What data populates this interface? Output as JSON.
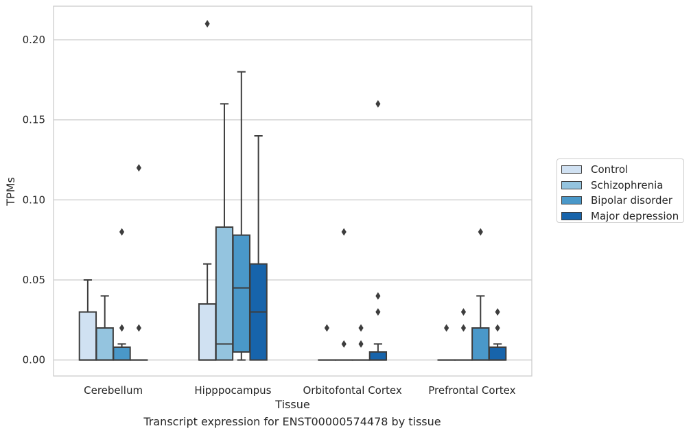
{
  "caption": "Transcript expression for ENST00000574478 by tissue",
  "colors": {
    "Control": "#d0e1f2",
    "Schizophrenia": "#94c4df",
    "Bipolar disorder": "#4a98c9",
    "Major depression": "#1764ab",
    "grid": "#cccccc",
    "edge": "#3d3d3d"
  },
  "chart_data": {
    "type": "box",
    "xlabel": "Tissue",
    "ylabel": "TPMs",
    "ylim": [
      -0.01,
      0.221
    ],
    "yticks": [
      0.0,
      0.05,
      0.1,
      0.15,
      0.2
    ],
    "ytick_labels": [
      "0.00",
      "0.05",
      "0.10",
      "0.15",
      "0.20"
    ],
    "grid": true,
    "legend_position": "right",
    "categories": [
      "Cerebellum",
      "Hipppocampus",
      "Orbitofontal Cortex",
      "Prefrontal Cortex"
    ],
    "series": [
      {
        "name": "Control",
        "boxes": [
          {
            "whislo": 0.0,
            "q1": 0.0,
            "med": 0.0,
            "q3": 0.03,
            "whishi": 0.05,
            "fliers": []
          },
          {
            "whislo": 0.0,
            "q1": 0.0,
            "med": 0.0,
            "q3": 0.035,
            "whishi": 0.06,
            "fliers": [
              0.21
            ]
          },
          {
            "whislo": 0.0,
            "q1": 0.0,
            "med": 0.0,
            "q3": 0.0,
            "whishi": 0.0,
            "fliers": [
              0.02
            ]
          },
          {
            "whislo": 0.0,
            "q1": 0.0,
            "med": 0.0,
            "q3": 0.0,
            "whishi": 0.0,
            "fliers": [
              0.02
            ]
          }
        ]
      },
      {
        "name": "Schizophrenia",
        "boxes": [
          {
            "whislo": 0.0,
            "q1": 0.0,
            "med": 0.0,
            "q3": 0.02,
            "whishi": 0.04,
            "fliers": []
          },
          {
            "whislo": 0.0,
            "q1": 0.0,
            "med": 0.01,
            "q3": 0.083,
            "whishi": 0.16,
            "fliers": []
          },
          {
            "whislo": 0.0,
            "q1": 0.0,
            "med": 0.0,
            "q3": 0.0,
            "whishi": 0.0,
            "fliers": [
              0.01,
              0.08
            ]
          },
          {
            "whislo": 0.0,
            "q1": 0.0,
            "med": 0.0,
            "q3": 0.0,
            "whishi": 0.0,
            "fliers": [
              0.02,
              0.03
            ]
          }
        ]
      },
      {
        "name": "Bipolar disorder",
        "boxes": [
          {
            "whislo": 0.0,
            "q1": 0.0,
            "med": 0.0,
            "q3": 0.008,
            "whishi": 0.01,
            "fliers": [
              0.02,
              0.08
            ]
          },
          {
            "whislo": 0.0,
            "q1": 0.005,
            "med": 0.045,
            "q3": 0.078,
            "whishi": 0.18,
            "fliers": []
          },
          {
            "whislo": 0.0,
            "q1": 0.0,
            "med": 0.0,
            "q3": 0.0,
            "whishi": 0.0,
            "fliers": [
              0.01,
              0.02
            ]
          },
          {
            "whislo": 0.0,
            "q1": 0.0,
            "med": 0.0,
            "q3": 0.02,
            "whishi": 0.04,
            "fliers": [
              0.08
            ]
          }
        ]
      },
      {
        "name": "Major depression",
        "boxes": [
          {
            "whislo": 0.0,
            "q1": 0.0,
            "med": 0.0,
            "q3": 0.0,
            "whishi": 0.0,
            "fliers": [
              0.02,
              0.12
            ]
          },
          {
            "whislo": 0.0,
            "q1": 0.0,
            "med": 0.03,
            "q3": 0.06,
            "whishi": 0.14,
            "fliers": []
          },
          {
            "whislo": 0.0,
            "q1": 0.0,
            "med": 0.0,
            "q3": 0.005,
            "whishi": 0.01,
            "fliers": [
              0.03,
              0.04,
              0.16
            ]
          },
          {
            "whislo": 0.0,
            "q1": 0.0,
            "med": 0.0,
            "q3": 0.008,
            "whishi": 0.01,
            "fliers": [
              0.02,
              0.03
            ]
          }
        ]
      }
    ]
  }
}
